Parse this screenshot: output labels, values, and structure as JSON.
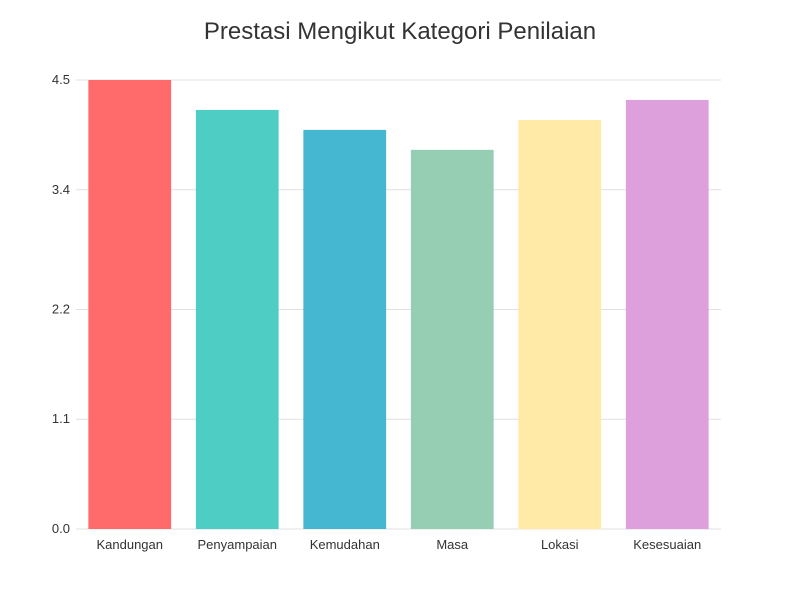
{
  "chart_data": {
    "type": "bar",
    "title": "Prestasi Mengikut Kategori Penilaian",
    "xlabel": "",
    "ylabel": "",
    "categories": [
      "Kandungan",
      "Penyampaian",
      "Kemudahan",
      "Masa",
      "Lokasi",
      "Kesesuaian"
    ],
    "values": [
      4.5,
      4.2,
      4.0,
      3.8,
      4.1,
      4.3
    ],
    "colors": [
      "#FF6B6B",
      "#4ECDC4",
      "#45B7D1",
      "#96CEB4",
      "#FFEAA7",
      "#DDA0DD"
    ],
    "ylim": [
      0,
      4.5
    ],
    "yticks": [
      0.0,
      1.1,
      2.2,
      3.4,
      4.5
    ],
    "ytick_labels": [
      "0.0",
      "1.1",
      "2.2",
      "3.4",
      "4.5"
    ],
    "grid": true,
    "legend": false
  }
}
